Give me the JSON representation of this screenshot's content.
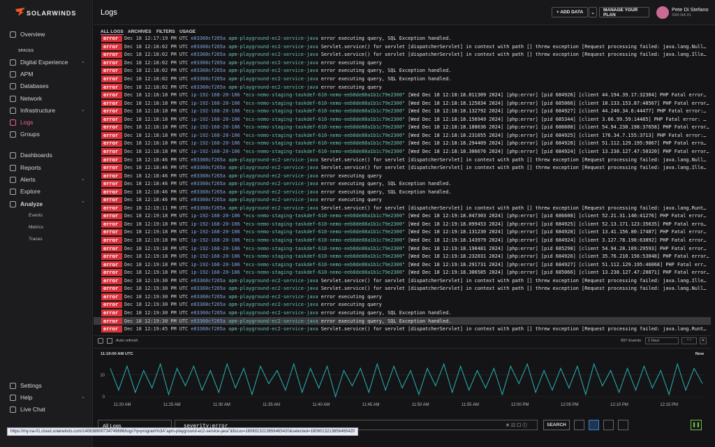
{
  "sidebar": {
    "logo": "SOLARWINDS",
    "section": "SPACES",
    "items": [
      "Overview",
      "Digital Experience",
      "APM",
      "Databases",
      "Network",
      "Infrastructure",
      "Logs",
      "Groups",
      "Dashboards",
      "Reports",
      "Alerts",
      "Explore",
      "Analyze",
      "Events",
      "Metrics",
      "Traces",
      "Settings",
      "Help",
      "Live Chat"
    ]
  },
  "header": {
    "title": "Logs",
    "add_data": "+ ADD DATA",
    "plan": "MANAGE YOUR PLAN",
    "user": "Pete Di Stefano",
    "org": "SWI-NA-01"
  },
  "tabs": [
    "ALL LOGS",
    "ARCHIVES",
    "FILTERS",
    "USAGE"
  ],
  "logs": {
    "rows": [
      [
        "error",
        "Dec 18 12:17:19 PM UTC",
        "e03360cf265a",
        "apm-playground-ec2-service-java",
        "error executing query, SQL Exception handled."
      ],
      [
        "error",
        "Dec 18 12:18:02 PM UTC",
        "e03360cf265a",
        "apm-playground-ec2-service-java",
        "Servlet.service() for servlet [dispatcherServlet] in context with path [] threw exception [Request processing failed: java.lang.Null…"
      ],
      [
        "error",
        "Dec 18 12:18:02 PM UTC",
        "e03360cf265a",
        "apm-playground-ec2-service-java",
        "Servlet.service() for servlet [dispatcherServlet] in context with path [] threw exception [Request processing failed: java.lang.Ille…"
      ],
      [
        "error",
        "Dec 18 12:18:02 PM UTC",
        "e03360cf265a",
        "apm-playground-ec2-service-java",
        "error executing query"
      ],
      [
        "error",
        "Dec 18 12:18:02 PM UTC",
        "e03360cf265a",
        "apm-playground-ec2-service-java",
        "error executing query, SQL Exception handled."
      ],
      [
        "error",
        "Dec 18 12:18:02 PM UTC",
        "e03360cf265a",
        "apm-playground-ec2-service-java",
        "error executing query, SQL Exception handled."
      ],
      [
        "error",
        "Dec 18 12:18:02 PM UTC",
        "e03360cf265a",
        "apm-playground-ec2-service-java",
        "error executing query"
      ],
      [
        "error",
        "Dec 18 12:18:18 PM UTC",
        "ip-192-168-20-106",
        "\"ecs-nemo-staging-taskdef-610-nemo-eeb8de88a1b1c79e2300\"",
        "[Wed Dec 18 12:18:18.011309 2024] [php:error] [pid 684926] [client 44.194.39.17:32304] PHP Fatal error…"
      ],
      [
        "error",
        "Dec 18 12:18:18 PM UTC",
        "ip-192-168-20-106",
        "\"ecs-nemo-staging-taskdef-610-nemo-eeb8de88a1b1c79e2300\"",
        "[Wed Dec 18 12:18:18.125834 2024] [php:error] [pid 685066] [client 18.133.153.87:48567] PHP Fatal error…"
      ],
      [
        "error",
        "Dec 18 12:18:18 PM UTC",
        "ip-192-168-20-106",
        "\"ecs-nemo-staging-taskdef-610-nemo-eeb8de88a1b1c79e2300\"",
        "[Wed Dec 18 12:18:18.132792 2024] [php:error] [pid 684927] [client 44.240.34.6:44477] PHP Fatal error:…"
      ],
      [
        "error",
        "Dec 18 12:18:18 PM UTC",
        "ip-192-168-20-106",
        "\"ecs-nemo-staging-taskdef-610-nemo-eeb8de88a1b1c79e2300\"",
        "[Wed Dec 18 12:18:18.156949 2024] [php:error] [pid 685344] [client 3.66.99.59:14485] PHP Fatal error: …"
      ],
      [
        "error",
        "Dec 18 12:18:18 PM UTC",
        "ip-192-168-20-106",
        "\"ecs-nemo-staging-taskdef-610-nemo-eeb8de88a1b1c79e2300\"",
        "[Wed Dec 18 12:18:18.188636 2024] [php:error] [pid 686608] [client 54.94.238.198:37658] PHP Fatal error…"
      ],
      [
        "error",
        "Dec 18 12:18:18 PM UTC",
        "ip-192-168-20-106",
        "\"ecs-nemo-staging-taskdef-610-nemo-eeb8de88a1b1c79e2300\"",
        "[Wed Dec 18 12:18:18.231055 2024] [php:error] [pid 684925] [client 176.34.7.155:3713] PHP Fatal error:…"
      ],
      [
        "error",
        "Dec 18 12:18:18 PM UTC",
        "ip-192-168-20-106",
        "\"ecs-nemo-staging-taskdef-610-nemo-eeb8de88a1b1c79e2300\"",
        "[Wed Dec 18 12:18:18.294409 2024] [php:error] [pid 684928] [client 51.112.129.195:9867] PHP Fatal erro…"
      ],
      [
        "error",
        "Dec 18 12:18:18 PM UTC",
        "ip-192-168-20-106",
        "\"ecs-nemo-staging-taskdef-610-nemo-eeb8de88a1b1c79e2300\"",
        "[Wed Dec 18 12:18:18.306676 2024] [php:error] [pid 684924] [client 13.238.127.47:50320] PHP Fatal error…"
      ],
      [
        "error",
        "Dec 18 12:18:46 PM UTC",
        "e03360cf265a",
        "apm-playground-ec2-service-java",
        "Servlet.service() for servlet [dispatcherServlet] in context with path [] threw exception [Request processing failed: java.lang.Null…"
      ],
      [
        "error",
        "Dec 18 12:18:46 PM UTC",
        "e03360cf265a",
        "apm-playground-ec2-service-java",
        "Servlet.service() for servlet [dispatcherServlet] in context with path [] threw exception [Request processing failed: java.lang.Ille…"
      ],
      [
        "error",
        "Dec 18 12:18:46 PM UTC",
        "e03360cf265a",
        "apm-playground-ec2-service-java",
        "error executing query"
      ],
      [
        "error",
        "Dec 18 12:18:46 PM UTC",
        "e03360cf265a",
        "apm-playground-ec2-service-java",
        "error executing query, SQL Exception handled."
      ],
      [
        "error",
        "Dec 18 12:18:46 PM UTC",
        "e03360cf265a",
        "apm-playground-ec2-service-java",
        "error executing query, SQL Exception handled."
      ],
      [
        "error",
        "Dec 18 12:18:46 PM UTC",
        "e03360cf265a",
        "apm-playground-ec2-service-java",
        "error executing query"
      ],
      [
        "error",
        "Dec 18 12:19:11 PM UTC",
        "e03360cf265a",
        "apm-playground-ec2-service-java",
        "Servlet.service() for servlet [dispatcherServlet] in context with path [] threw exception [Request processing failed: java.lang.Runt…"
      ],
      [
        "error",
        "Dec 18 12:19:18 PM UTC",
        "ip-192-168-20-106",
        "\"ecs-nemo-staging-taskdef-610-nemo-eeb8de88a1b1c79e2300\"",
        "[Wed Dec 18 12:19:18.047303 2024] [php:error] [pid 686608] [client 52.21.31.140:41276] PHP Fatal error…"
      ],
      [
        "error",
        "Dec 18 12:19:18 PM UTC",
        "ip-192-168-20-106",
        "\"ecs-nemo-staging-taskdef-610-nemo-eeb8de88a1b1c79e2300\"",
        "[Wed Dec 18 12:19:18.099453 2024] [php:error] [pid 684925] [client 52.13.171.123:35635] PHP Fatal erro…"
      ],
      [
        "error",
        "Dec 18 12:19:18 PM UTC",
        "ip-192-168-20-106",
        "\"ecs-nemo-staging-taskdef-610-nemo-eeb8de88a1b1c79e2300\"",
        "[Wed Dec 18 12:19:18.131230 2024] [php:error] [pid 684928] [client 13.41.156.80:17487] PHP Fatal error…"
      ],
      [
        "error",
        "Dec 18 12:19:18 PM UTC",
        "ip-192-168-20-106",
        "\"ecs-nemo-staging-taskdef-610-nemo-eeb8de88a1b1c79e2300\"",
        "[Wed Dec 18 12:19:18.143979 2024] [php:error] [pid 684924] [client 3.127.78.190:63892] PHP Fatal error…"
      ],
      [
        "error",
        "Dec 18 12:19:18 PM UTC",
        "ip-192-168-20-106",
        "\"ecs-nemo-staging-taskdef-610-nemo-eeb8de88a1b1c79e2300\"",
        "[Wed Dec 18 12:19:18.190481 2024] [php:error] [pid 685298] [client 54.94.28.109:29593] PHP Fatal error…"
      ],
      [
        "error",
        "Dec 18 12:19:18 PM UTC",
        "ip-192-168-20-106",
        "\"ecs-nemo-staging-taskdef-610-nemo-eeb8de88a1b1c79e2300\"",
        "[Wed Dec 18 12:19:18.232031 2024] [php:error] [pid 684926] [client 35.76.210.156:53048] PHP Fatal error…"
      ],
      [
        "error",
        "Dec 18 12:19:18 PM UTC",
        "ip-192-168-20-106",
        "\"ecs-nemo-staging-taskdef-610-nemo-eeb8de88a1b1c79e2300\"",
        "[Wed Dec 18 12:19:18.291731 2024] [php:error] [pid 684927] [client 51.112.129.195:46068] PHP Fatal err…"
      ],
      [
        "error",
        "Dec 18 12:19:18 PM UTC",
        "ip-192-168-20-106",
        "\"ecs-nemo-staging-taskdef-610-nemo-eeb8de88a1b1c79e2300\"",
        "[Wed Dec 18 12:19:18.306585 2024] [php:error] [pid 685066] [client 13.238.127.47:20871] PHP Fatal error…"
      ],
      [
        "error",
        "Dec 18 12:19:30 PM UTC",
        "e03360cf265a",
        "apm-playground-ec2-service-java",
        "Servlet.service() for servlet [dispatcherServlet] in context with path [] threw exception [Request processing failed: java.lang.Ille…"
      ],
      [
        "error",
        "Dec 18 12:19:30 PM UTC",
        "e03360cf265a",
        "apm-playground-ec2-service-java",
        "Servlet.service() for servlet [dispatcherServlet] in context with path [] threw exception [Request processing failed: java.lang.Null…"
      ],
      [
        "error",
        "Dec 18 12:19:30 PM UTC",
        "e03360cf265a",
        "apm-playground-ec2-service-java",
        "error executing query"
      ],
      [
        "error",
        "Dec 18 12:19:30 PM UTC",
        "e03360cf265a",
        "apm-playground-ec2-service-java",
        "error executing query"
      ],
      [
        "error",
        "Dec 18 12:19:30 PM UTC",
        "e03360cf265a",
        "apm-playground-ec2-service-java",
        "error executing query, SQL Exception handled."
      ],
      [
        "error",
        "Dec 18 12:19:30 PM UTC",
        "e03360cf265a",
        "apm-playground-ec2-service-java",
        "error executing query, SQL Exception handled."
      ],
      [
        "error",
        "Dec 18 12:19:45 PM UTC",
        "e03360cf265a",
        "apm-playground-ec2-service-java",
        "Servlet.service() for servlet [dispatcherServlet] in context with path [] threw exception [Request processing failed: java.lang.Runt…"
      ]
    ]
  },
  "toolbar": {
    "auto_refresh": "Auto refresh",
    "events": "997 Events",
    "range": "1 hour"
  },
  "histogram": {
    "start_label": "11:19:00 AM UTC",
    "end_label": "Now",
    "ylim": [
      0,
      16
    ],
    "yticks": [
      0,
      10
    ],
    "x_labels": [
      "11:20 AM",
      "11:25 AM",
      "11:30 AM",
      "11:35 AM",
      "11:40 AM",
      "11:45 AM",
      "11:50 AM",
      "11:55 AM",
      "12:00 PM",
      "12:05 PM",
      "12:10 PM",
      "12:15 PM"
    ],
    "values": [
      13,
      3,
      14,
      2,
      12,
      4,
      15,
      1,
      13,
      5,
      14,
      3,
      12,
      2,
      15,
      4,
      13,
      1,
      14,
      6,
      12,
      3,
      15,
      2,
      13,
      4,
      14,
      0,
      12,
      5,
      13,
      2,
      15,
      3,
      14,
      4,
      12,
      1,
      13,
      5,
      15,
      2,
      14,
      3,
      12,
      4,
      13,
      1,
      14,
      6,
      15,
      2,
      12,
      3,
      13,
      4,
      14,
      1,
      15,
      5,
      12,
      2,
      13,
      3,
      14,
      4,
      12,
      1,
      15,
      3,
      13,
      6
    ]
  },
  "search": {
    "view": "All Logs",
    "query": "severity:error",
    "button": "SEARCH"
  },
  "status_url": "https://my.na-01.cloud.solarwinds.com/140638900734749696/logs?q=program%3A\"apm-playground-ec2-service-java\"&focus=1806013213656465420&selected=1806013213656465420"
}
